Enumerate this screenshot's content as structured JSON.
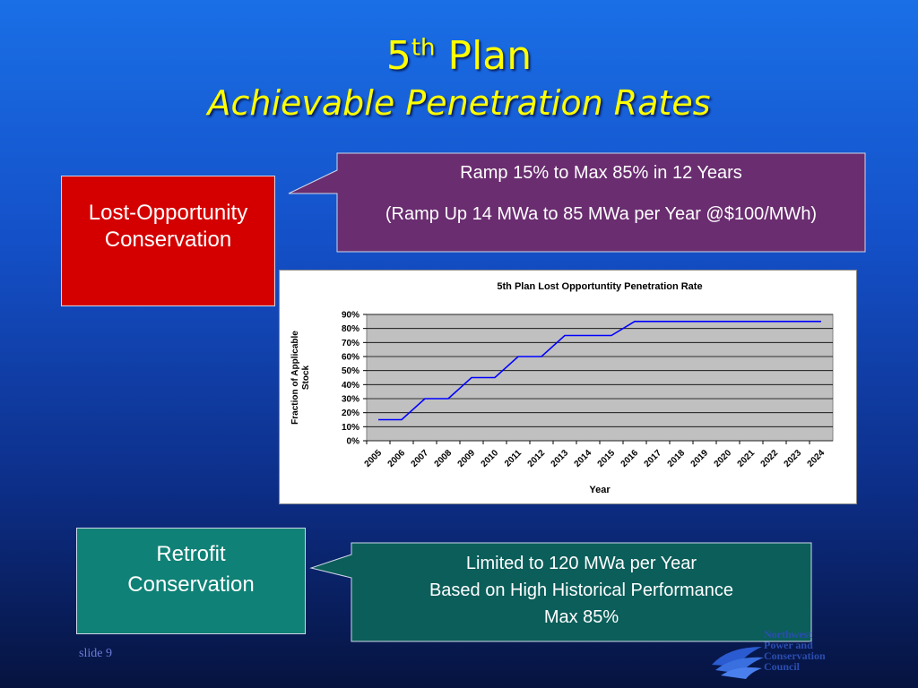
{
  "title": {
    "main": "5",
    "main_sup": "th",
    "main_rest": " Plan",
    "subtitle": "Achievable Penetration Rates"
  },
  "lost_box": {
    "line1": "Lost-Opportunity",
    "line2": "Conservation"
  },
  "callout_top": {
    "line1": "Ramp 15% to Max 85% in 12 Years",
    "line2": "(Ramp Up 14 MWa to 85 MWa per Year @$100/MWh)"
  },
  "retrofit_box": {
    "line1": "Retrofit",
    "line2": "Conservation"
  },
  "callout_bottom": {
    "line1": "Limited to 120 MWa per Year",
    "line2": "Based on High Historical Performance",
    "line3": "Max 85%"
  },
  "footer": {
    "slide": "slide 9",
    "logo_text": [
      "Northwest",
      "Power and",
      "Conservation",
      "Council"
    ]
  },
  "colors": {
    "title": "#ffff00",
    "lost_box": "#d40000",
    "retrofit_box": "#0f8176",
    "callout_top": "#6a2d70",
    "callout_bottom": "#0b5e5a",
    "series": "#0000ff",
    "plot_bg": "#c0c0c0"
  },
  "chart_data": {
    "type": "line",
    "title": "5th Plan Lost Opportuntity Penetration Rate",
    "xlabel": "Year",
    "ylabel": "Fraction of Applicable Stock",
    "categories": [
      "2005",
      "2006",
      "2007",
      "2008",
      "2009",
      "2010",
      "2011",
      "2012",
      "2013",
      "2014",
      "2015",
      "2016",
      "2017",
      "2018",
      "2019",
      "2020",
      "2021",
      "2022",
      "2023",
      "2024"
    ],
    "series": [
      {
        "values": [
          0.15,
          0.15,
          0.3,
          0.3,
          0.45,
          0.45,
          0.6,
          0.6,
          0.75,
          0.75,
          0.75,
          0.85,
          0.85,
          0.85,
          0.85,
          0.85,
          0.85,
          0.85,
          0.85,
          0.85
        ]
      }
    ],
    "ylim": [
      0,
      0.9
    ],
    "yticks": [
      "0%",
      "10%",
      "20%",
      "30%",
      "40%",
      "50%",
      "60%",
      "70%",
      "80%",
      "90%"
    ],
    "grid": true,
    "legend": "none"
  }
}
